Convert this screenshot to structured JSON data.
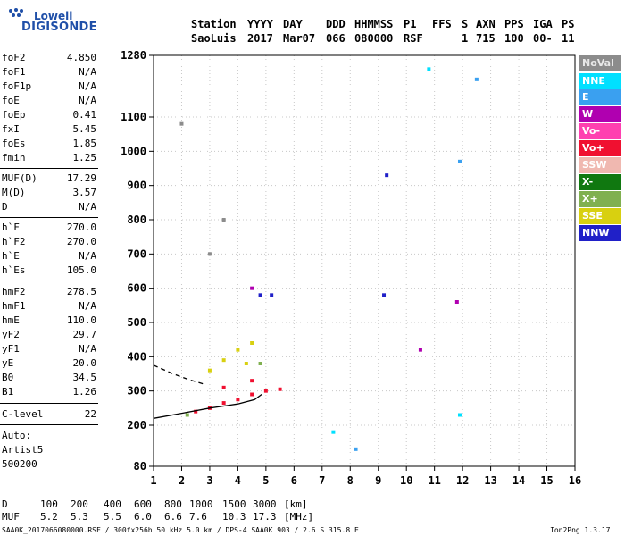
{
  "logo": {
    "line1": "Lowell",
    "line2": "DIGISONDE"
  },
  "header": {
    "labels": [
      "Station",
      "YYYY",
      "DAY",
      "DDD",
      "HHMMSS",
      "P1",
      "FFS",
      "S",
      "AXN",
      "PPS",
      "IGA",
      "PS"
    ],
    "values": [
      "SaoLuis",
      "2017",
      "Mar07",
      "066",
      "080000",
      "RSF",
      "1",
      "715",
      "100",
      "00-",
      "11"
    ]
  },
  "params": [
    {
      "name": "foF2",
      "value": "4.850"
    },
    {
      "name": "foF1",
      "value": "N/A"
    },
    {
      "name": "foF1p",
      "value": "N/A"
    },
    {
      "name": "foE",
      "value": "N/A"
    },
    {
      "name": "foEp",
      "value": "0.41"
    },
    {
      "name": "fxI",
      "value": "5.45"
    },
    {
      "name": "foEs",
      "value": "1.85"
    },
    {
      "name": "fmin",
      "value": "1.25"
    },
    {
      "name": "MUF(D)",
      "value": "17.29"
    },
    {
      "name": "M(D)",
      "value": "3.57"
    },
    {
      "name": "D",
      "value": "N/A"
    },
    {
      "name": "h`F",
      "value": "270.0"
    },
    {
      "name": "h`F2",
      "value": "270.0"
    },
    {
      "name": "h`E",
      "value": "N/A"
    },
    {
      "name": "h`Es",
      "value": "105.0"
    },
    {
      "name": "hmF2",
      "value": "278.5"
    },
    {
      "name": "hmF1",
      "value": "N/A"
    },
    {
      "name": "hmE",
      "value": "110.0"
    },
    {
      "name": "yF2",
      "value": "29.7"
    },
    {
      "name": "yF1",
      "value": "N/A"
    },
    {
      "name": "yE",
      "value": "20.0"
    },
    {
      "name": "B0",
      "value": "34.5"
    },
    {
      "name": "B1",
      "value": "1.26"
    },
    {
      "name": "C-level",
      "value": "22"
    }
  ],
  "auto": {
    "line1": "Auto:",
    "line2": "Artist5",
    "line3": "500200"
  },
  "legend": [
    {
      "label": "NoVal",
      "color": "#8c8c8c"
    },
    {
      "label": "NNE",
      "color": "#00e0ff"
    },
    {
      "label": "E",
      "color": "#3aa0f0"
    },
    {
      "label": "W",
      "color": "#b000b0"
    },
    {
      "label": "Vo-",
      "color": "#ff40b0"
    },
    {
      "label": "Vo+",
      "color": "#f01030"
    },
    {
      "label": "SSW",
      "color": "#f0b8b0"
    },
    {
      "label": "X-",
      "color": "#107810"
    },
    {
      "label": "X+",
      "color": "#80b050"
    },
    {
      "label": "SSE",
      "color": "#d8d010"
    },
    {
      "label": "NNW",
      "color": "#2020c8"
    }
  ],
  "muf_table": {
    "d_label": "D",
    "d_values": [
      "100",
      "200",
      "400",
      "600",
      "800",
      "1000",
      "1500",
      "3000",
      "[km]"
    ],
    "muf_label": "MUF",
    "muf_values": [
      "5.2",
      "5.3",
      "5.5",
      "6.0",
      "6.6",
      "7.6",
      "10.3",
      "17.3",
      "[MHz]"
    ]
  },
  "footer": {
    "left": "SAA0K_2017066080000.RSF / 300fx256h 50 kHz 5.0 km / DPS-4 SAA0K 903 / 2.6 S 315.8 E",
    "right": "Ion2Png 1.3.17"
  },
  "chart_data": {
    "type": "scatter",
    "title": "",
    "xlabel": "",
    "ylabel": "",
    "xlim": [
      1,
      16
    ],
    "ylim": [
      80,
      1280
    ],
    "x_ticks": [
      1,
      2,
      3,
      4,
      5,
      6,
      7,
      8,
      9,
      10,
      11,
      12,
      13,
      14,
      15,
      16
    ],
    "y_ticks": [
      80,
      200,
      300,
      400,
      500,
      600,
      700,
      800,
      900,
      1000,
      1100,
      1280
    ],
    "grid": true,
    "series": [
      {
        "name": "Vo+",
        "color": "#f01030",
        "points": [
          [
            2.5,
            240
          ],
          [
            3.0,
            250
          ],
          [
            3.5,
            265
          ],
          [
            4.0,
            275
          ],
          [
            4.5,
            290
          ],
          [
            5.0,
            300
          ],
          [
            5.5,
            305
          ],
          [
            3.5,
            310
          ],
          [
            4.5,
            330
          ]
        ]
      },
      {
        "name": "SSE",
        "color": "#d8d010",
        "points": [
          [
            3.0,
            360
          ],
          [
            3.5,
            390
          ],
          [
            4.0,
            420
          ],
          [
            4.5,
            440
          ],
          [
            4.3,
            380
          ]
        ]
      },
      {
        "name": "NNW",
        "color": "#2020c8",
        "points": [
          [
            4.8,
            580
          ],
          [
            5.2,
            580
          ],
          [
            9.2,
            580
          ],
          [
            9.3,
            930
          ]
        ]
      },
      {
        "name": "W",
        "color": "#b000b0",
        "points": [
          [
            4.5,
            600
          ],
          [
            11.8,
            560
          ],
          [
            10.5,
            420
          ]
        ]
      },
      {
        "name": "X+",
        "color": "#80b050",
        "points": [
          [
            2.2,
            230
          ],
          [
            4.8,
            380
          ]
        ]
      },
      {
        "name": "NNE",
        "color": "#00e0ff",
        "points": [
          [
            10.8,
            1240
          ],
          [
            11.9,
            230
          ],
          [
            7.4,
            180
          ]
        ]
      },
      {
        "name": "E",
        "color": "#3aa0f0",
        "points": [
          [
            12.5,
            1210
          ],
          [
            8.2,
            130
          ],
          [
            11.9,
            970
          ]
        ]
      },
      {
        "name": "NoVal",
        "color": "#8c8c8c",
        "points": [
          [
            3.0,
            700
          ],
          [
            3.5,
            800
          ],
          [
            2.0,
            1080
          ]
        ]
      }
    ],
    "traces": [
      {
        "name": "O-trace",
        "color": "#000000",
        "style": "solid",
        "points": [
          [
            1.0,
            220
          ],
          [
            2.0,
            235
          ],
          [
            3.0,
            250
          ],
          [
            4.0,
            262
          ],
          [
            4.6,
            275
          ],
          [
            4.85,
            290
          ]
        ]
      },
      {
        "name": "profile",
        "color": "#000000",
        "style": "dashed",
        "points": [
          [
            1.0,
            375
          ],
          [
            1.7,
            350
          ],
          [
            2.3,
            332
          ],
          [
            2.8,
            320
          ]
        ]
      }
    ]
  }
}
